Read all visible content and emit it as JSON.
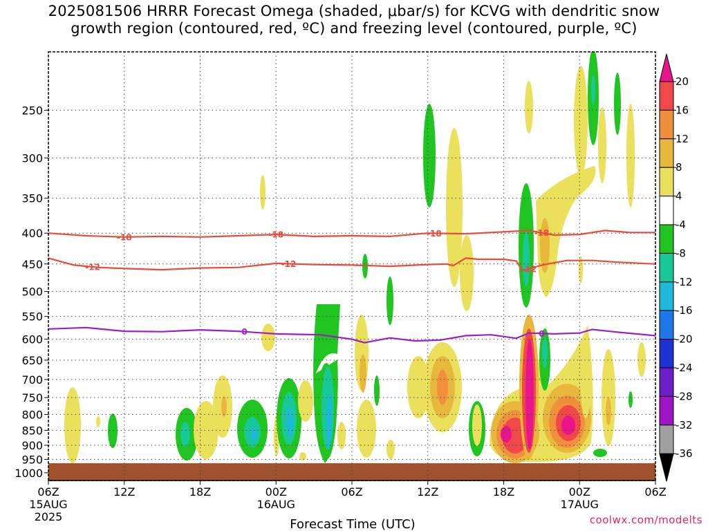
{
  "chart_data": {
    "type": "heatmap",
    "title": "2025081506 HRRR Forecast Omega (shaded, μbar/s) for KCVG with dendritic snow\ngrowth region (contoured, red, ºC) and freezing level (contoured, purple, ºC)",
    "xlabel": "Forecast Time (UTC)",
    "ylabel": "",
    "credit": "coolwx.com/modelts",
    "x_ticks": [
      {
        "label": "06Z",
        "date": "15AUG",
        "year": "2025",
        "hours": 0
      },
      {
        "label": "12Z",
        "date": "",
        "year": "",
        "hours": 6
      },
      {
        "label": "18Z",
        "date": "",
        "year": "",
        "hours": 12
      },
      {
        "label": "00Z",
        "date": "16AUG",
        "year": "",
        "hours": 18
      },
      {
        "label": "06Z",
        "date": "",
        "year": "",
        "hours": 24
      },
      {
        "label": "12Z",
        "date": "",
        "year": "",
        "hours": 30
      },
      {
        "label": "18Z",
        "date": "",
        "year": "",
        "hours": 36
      },
      {
        "label": "00Z",
        "date": "17AUG",
        "year": "",
        "hours": 42
      },
      {
        "label": "06Z",
        "date": "",
        "year": "",
        "hours": 48
      }
    ],
    "xlim": [
      0,
      48
    ],
    "y_ticks": [
      250,
      300,
      350,
      400,
      450,
      500,
      550,
      600,
      650,
      700,
      750,
      800,
      850,
      900,
      950,
      1000
    ],
    "ylim": [
      1030,
      200
    ],
    "y_scale": "log-pressure",
    "grid": true,
    "colorbar": {
      "labels": [
        "20",
        "16",
        "12",
        "8",
        "4",
        "-4",
        "-8",
        "-12",
        "-16",
        "-20",
        "-24",
        "-28",
        "-32",
        "-36"
      ],
      "colors": [
        "#e8158c",
        "#f04848",
        "#f0903c",
        "#e8b83c",
        "#ebe05c",
        "#ffffff",
        "#21c521",
        "#18c896",
        "#1eb8d8",
        "#1e78e8",
        "#1e32d2",
        "#6e1ec8",
        "#a014c8",
        "#a0a0a0"
      ]
    },
    "contours": [
      {
        "name": "-18",
        "color": "#e84a3c",
        "label": "-18",
        "points": [
          [
            0,
            400
          ],
          [
            3,
            404
          ],
          [
            6,
            406
          ],
          [
            9,
            405
          ],
          [
            12,
            406
          ],
          [
            15,
            404
          ],
          [
            18,
            402
          ],
          [
            21,
            405
          ],
          [
            24,
            404
          ],
          [
            27,
            405
          ],
          [
            30,
            400
          ],
          [
            33,
            401
          ],
          [
            36,
            398
          ],
          [
            38,
            396
          ],
          [
            40,
            403
          ],
          [
            42,
            402
          ],
          [
            44,
            396
          ],
          [
            46,
            399
          ],
          [
            48,
            399
          ]
        ]
      },
      {
        "name": "-12",
        "color": "#e84a3c",
        "label": "-12",
        "points": [
          [
            0,
            440
          ],
          [
            2,
            452
          ],
          [
            4,
            456
          ],
          [
            6,
            458
          ],
          [
            9,
            460
          ],
          [
            12,
            457
          ],
          [
            15,
            456
          ],
          [
            18,
            449
          ],
          [
            21,
            451
          ],
          [
            24,
            452
          ],
          [
            27,
            454
          ],
          [
            30,
            451
          ],
          [
            31.5,
            450
          ],
          [
            32,
            453
          ],
          [
            33,
            440
          ],
          [
            34,
            442
          ],
          [
            36,
            442
          ],
          [
            37,
            445
          ],
          [
            37.5,
            462
          ],
          [
            39,
            452
          ],
          [
            41,
            444
          ],
          [
            43,
            444
          ],
          [
            45,
            447
          ],
          [
            48,
            450
          ]
        ]
      },
      {
        "name": "0",
        "color": "#9b1ec8",
        "label": "0",
        "points": [
          [
            0,
            577
          ],
          [
            3,
            574
          ],
          [
            6,
            582
          ],
          [
            9,
            583
          ],
          [
            12,
            579
          ],
          [
            15,
            582
          ],
          [
            18,
            588
          ],
          [
            20,
            589
          ],
          [
            21.5,
            590
          ],
          [
            24,
            600
          ],
          [
            25,
            608
          ],
          [
            27,
            597
          ],
          [
            29,
            604
          ],
          [
            31,
            602
          ],
          [
            33,
            592
          ],
          [
            35,
            590
          ],
          [
            37,
            598
          ],
          [
            38,
            586
          ],
          [
            40,
            588
          ],
          [
            42,
            586
          ],
          [
            43,
            578
          ],
          [
            45,
            584
          ],
          [
            48,
            592
          ]
        ]
      }
    ]
  }
}
